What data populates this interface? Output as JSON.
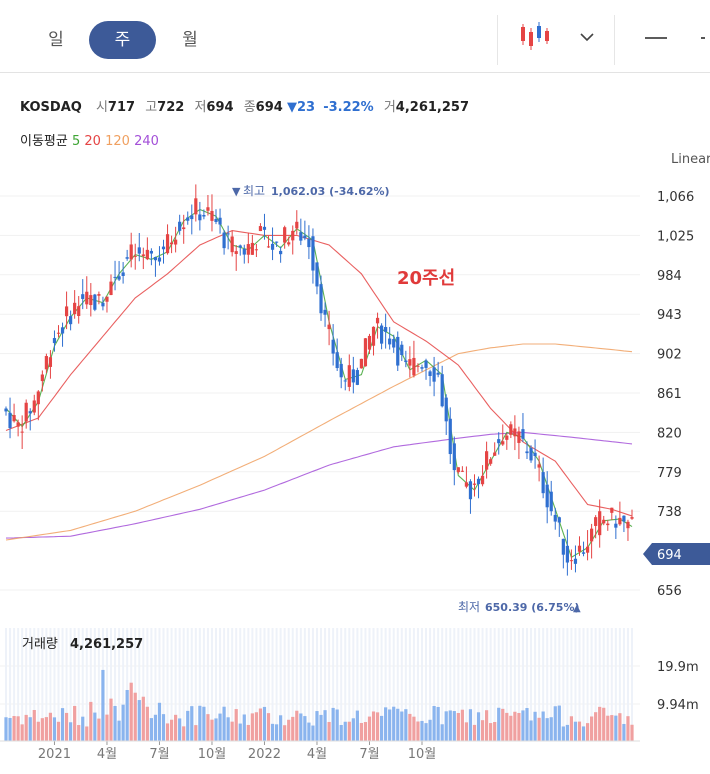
{
  "tabs": [
    {
      "label": "일"
    },
    {
      "label": "주"
    },
    {
      "label": "월"
    }
  ],
  "active_tab": "주",
  "quote": {
    "name": "KOSDAQ",
    "open_label": "시",
    "open": "717",
    "high_label": "고",
    "high": "722",
    "low_label": "저",
    "low": "694",
    "close_label": "종",
    "close": "694",
    "change": "23",
    "change_pct": "-3.22%",
    "volume_label": "거",
    "volume": "4,261,257"
  },
  "ma": {
    "label": "이동평균",
    "periods": [
      "5",
      "20",
      "120",
      "240"
    ],
    "colors": [
      "#3fa535",
      "#e54444",
      "#f0a060",
      "#a350d8"
    ]
  },
  "scale_label": "Linear",
  "annotation": "20주선",
  "colors": {
    "up": "#e54444",
    "down": "#2f6fd0",
    "accent": "#3d5a98"
  },
  "chart_data": {
    "type": "candlestick",
    "y_ticks": [
      "1,066",
      "1,025",
      "984",
      "943",
      "902",
      "861",
      "820",
      "779",
      "738",
      "656"
    ],
    "ylim": [
      640,
      1080
    ],
    "current_price": "694",
    "high_marker": {
      "text": "최고",
      "value": "1,062.03 (-34.62%)"
    },
    "low_marker": {
      "text": "최저",
      "value": "650.39 (6.75%)"
    },
    "x_labels": [
      "2021",
      "4월",
      "7월",
      "10월",
      "2022",
      "4월",
      "7월",
      "10월"
    ],
    "volume": {
      "label": "거래량",
      "value": "4,261,257",
      "y_ticks": [
        "19.9m",
        "9.94m"
      ]
    },
    "ma_lines": {
      "ma5": [
        [
          0,
          845
        ],
        [
          4,
          826
        ],
        [
          8,
          852
        ],
        [
          12,
          910
        ],
        [
          16,
          940
        ],
        [
          20,
          960
        ],
        [
          24,
          955
        ],
        [
          28,
          985
        ],
        [
          32,
          1005
        ],
        [
          36,
          1000
        ],
        [
          40,
          1008
        ],
        [
          44,
          1040
        ],
        [
          48,
          1052
        ],
        [
          52,
          1045
        ],
        [
          56,
          1015
        ],
        [
          60,
          1010
        ],
        [
          64,
          1025
        ],
        [
          68,
          1012
        ],
        [
          72,
          1032
        ],
        [
          76,
          1020
        ],
        [
          80,
          935
        ],
        [
          84,
          875
        ],
        [
          88,
          880
        ],
        [
          92,
          930
        ],
        [
          96,
          920
        ],
        [
          100,
          885
        ],
        [
          104,
          895
        ],
        [
          108,
          880
        ],
        [
          112,
          775
        ],
        [
          116,
          760
        ],
        [
          120,
          790
        ],
        [
          124,
          820
        ],
        [
          128,
          815
        ],
        [
          132,
          790
        ],
        [
          136,
          740
        ],
        [
          140,
          690
        ],
        [
          144,
          700
        ],
        [
          148,
          728
        ],
        [
          152,
          730
        ],
        [
          155,
          722
        ]
      ],
      "ma20": [
        [
          0,
          822
        ],
        [
          8,
          835
        ],
        [
          16,
          880
        ],
        [
          24,
          920
        ],
        [
          32,
          960
        ],
        [
          40,
          985
        ],
        [
          48,
          1015
        ],
        [
          56,
          1030
        ],
        [
          64,
          1025
        ],
        [
          72,
          1025
        ],
        [
          80,
          1015
        ],
        [
          88,
          985
        ],
        [
          96,
          935
        ],
        [
          104,
          915
        ],
        [
          112,
          890
        ],
        [
          120,
          845
        ],
        [
          128,
          810
        ],
        [
          136,
          790
        ],
        [
          144,
          745
        ],
        [
          150,
          740
        ],
        [
          155,
          733
        ]
      ],
      "ma120": [
        [
          0,
          708
        ],
        [
          16,
          718
        ],
        [
          32,
          738
        ],
        [
          48,
          765
        ],
        [
          64,
          795
        ],
        [
          80,
          832
        ],
        [
          96,
          868
        ],
        [
          104,
          885
        ],
        [
          112,
          902
        ],
        [
          120,
          908
        ],
        [
          128,
          912
        ],
        [
          136,
          912
        ],
        [
          148,
          907
        ],
        [
          155,
          904
        ]
      ],
      "ma240": [
        [
          0,
          710
        ],
        [
          16,
          712
        ],
        [
          32,
          725
        ],
        [
          48,
          740
        ],
        [
          64,
          760
        ],
        [
          80,
          786
        ],
        [
          96,
          805
        ],
        [
          112,
          814
        ],
        [
          120,
          818
        ],
        [
          128,
          820
        ],
        [
          140,
          815
        ],
        [
          155,
          808
        ]
      ]
    }
  }
}
